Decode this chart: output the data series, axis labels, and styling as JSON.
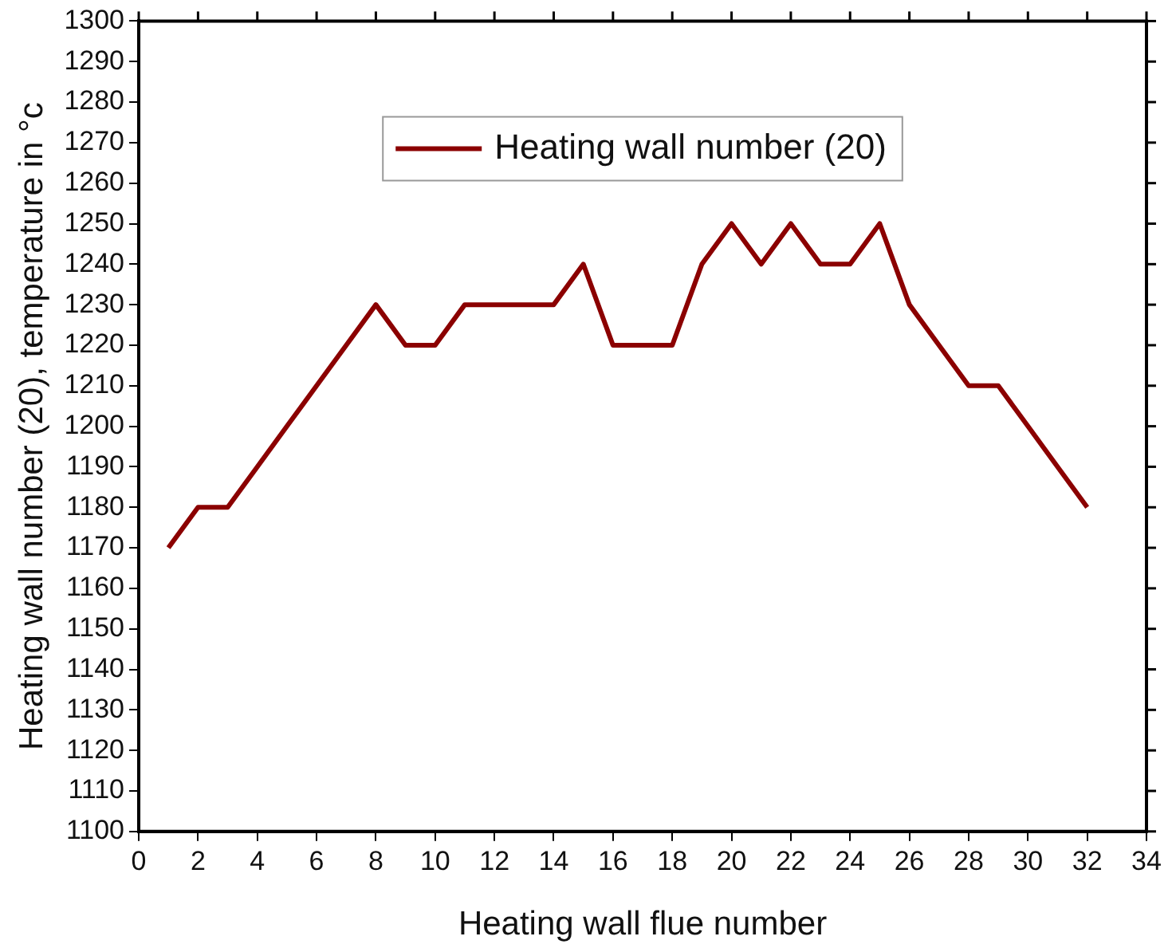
{
  "chart_data": {
    "type": "line",
    "xlabel": "Heating wall flue number",
    "ylabel": "Heating wall number (20), temperature in °c",
    "x": [
      1,
      2,
      3,
      4,
      5,
      6,
      7,
      8,
      9,
      10,
      11,
      12,
      13,
      14,
      15,
      16,
      17,
      18,
      19,
      20,
      21,
      22,
      23,
      24,
      25,
      26,
      27,
      28,
      29,
      30,
      31,
      32
    ],
    "series": [
      {
        "name": "Heating wall number (20)",
        "color": "#8b0000",
        "values": [
          1170,
          1180,
          1180,
          1190,
          1200,
          1210,
          1220,
          1230,
          1220,
          1220,
          1230,
          1230,
          1230,
          1230,
          1240,
          1220,
          1220,
          1220,
          1240,
          1250,
          1240,
          1250,
          1240,
          1240,
          1250,
          1230,
          1220,
          1210,
          1210,
          1200,
          1190,
          1180
        ]
      }
    ],
    "xlim": [
      0,
      34
    ],
    "xticks": [
      0,
      2,
      4,
      6,
      8,
      10,
      12,
      14,
      16,
      18,
      20,
      22,
      24,
      26,
      28,
      30,
      32,
      34
    ],
    "ylim": [
      1100,
      1300
    ],
    "yticks": [
      1100,
      1110,
      1120,
      1130,
      1140,
      1150,
      1160,
      1170,
      1180,
      1190,
      1200,
      1210,
      1220,
      1230,
      1240,
      1250,
      1260,
      1270,
      1280,
      1290,
      1300
    ],
    "grid": false,
    "legend": "top",
    "marker": "none",
    "line_style": "solid"
  }
}
